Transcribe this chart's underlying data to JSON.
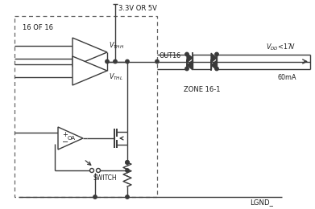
{
  "bg_color": "#ffffff",
  "line_color": "#3a3a3a",
  "text_color": "#1a1a1a",
  "supply_label": "3.3V OR 5V",
  "label_16of16": "16 OF 16",
  "label_vthh": "$V_{THH}$",
  "label_vthl": "$V_{THL}$",
  "label_oa": "OA",
  "label_switch": "SWITCH",
  "label_out16": "OUT16",
  "label_vdd": "$V_{DD}$<17V",
  "label_60ma": "60mA",
  "label_zone": "ZONE 16-1",
  "label_lgnd": "LGND_"
}
